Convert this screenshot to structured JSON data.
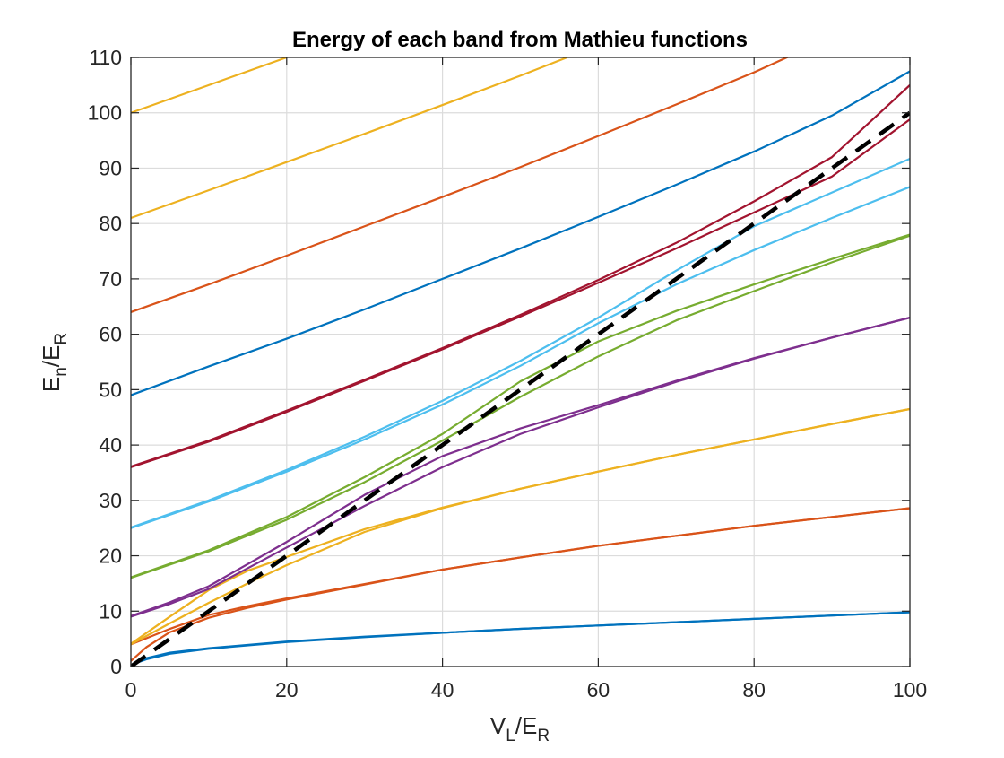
{
  "chart_data": {
    "type": "line",
    "title": "Energy of each band from Mathieu functions",
    "xlabel": {
      "main1": "V",
      "sub1": "L",
      "main2": "/E",
      "sub2": "R"
    },
    "ylabel": {
      "main1": "E",
      "sub1": "n",
      "main2": "/E",
      "sub2": "R"
    },
    "xlim": [
      0,
      100
    ],
    "ylim": [
      0,
      110
    ],
    "xticks": [
      0,
      20,
      40,
      60,
      80,
      100
    ],
    "yticks": [
      0,
      10,
      20,
      30,
      40,
      50,
      60,
      70,
      80,
      90,
      100,
      110
    ],
    "grid": true,
    "series": [
      {
        "color": "#0072BD",
        "x": [
          0,
          1,
          2,
          5,
          10,
          20,
          30,
          40,
          50,
          60,
          70,
          80,
          90,
          100
        ],
        "y": [
          0,
          0.95,
          1.5,
          2.5,
          3.3,
          4.5,
          5.4,
          6.1,
          6.8,
          7.4,
          8.0,
          8.6,
          9.2,
          9.8
        ]
      },
      {
        "color": "#0072BD",
        "x": [
          0,
          1,
          2,
          5,
          10,
          20,
          30,
          40,
          50,
          60,
          70,
          80,
          90,
          100
        ],
        "y": [
          0.1,
          0.8,
          1.3,
          2.3,
          3.2,
          4.4,
          5.3,
          6.1,
          6.8,
          7.4,
          8.0,
          8.6,
          9.2,
          9.8
        ]
      },
      {
        "color": "#D95319",
        "x": [
          0,
          2,
          5,
          10,
          15,
          20,
          30,
          40,
          50,
          60,
          70,
          80,
          90,
          100
        ],
        "y": [
          1.0,
          3.5,
          6.2,
          8.8,
          10.6,
          12.1,
          14.8,
          17.5,
          19.7,
          21.8,
          23.6,
          25.4,
          27.0,
          28.6
        ]
      },
      {
        "color": "#D95319",
        "x": [
          0,
          2,
          5,
          10,
          15,
          20,
          30,
          40,
          50,
          60,
          70,
          80,
          90,
          100
        ],
        "y": [
          4.0,
          5.1,
          6.8,
          9.3,
          10.9,
          12.3,
          14.9,
          17.5,
          19.7,
          21.8,
          23.6,
          25.4,
          27.0,
          28.6
        ]
      },
      {
        "color": "#EDB120",
        "x": [
          0,
          5,
          10,
          15,
          20,
          30,
          40,
          50,
          60,
          70,
          80,
          90,
          100
        ],
        "y": [
          4.0,
          7.8,
          11.5,
          15.0,
          18.3,
          24.3,
          28.6,
          32.1,
          35.2,
          38.2,
          41.0,
          43.8,
          46.5
        ]
      },
      {
        "color": "#EDB120",
        "x": [
          0,
          5,
          10,
          15,
          20,
          30,
          40,
          50,
          60,
          70,
          80,
          90,
          100
        ],
        "y": [
          4.1,
          9.0,
          13.8,
          17.3,
          19.8,
          24.8,
          28.7,
          32.1,
          35.2,
          38.2,
          41.0,
          43.8,
          46.5
        ]
      },
      {
        "color": "#7E2F8E",
        "x": [
          0,
          5,
          10,
          20,
          30,
          40,
          50,
          60,
          70,
          80,
          90,
          100
        ],
        "y": [
          9.0,
          11.3,
          14.0,
          21.5,
          29.0,
          36.0,
          42.0,
          46.8,
          51.4,
          55.6,
          59.4,
          63.0
        ]
      },
      {
        "color": "#7E2F8E",
        "x": [
          0,
          5,
          10,
          20,
          30,
          40,
          50,
          60,
          70,
          80,
          90,
          100
        ],
        "y": [
          9.1,
          11.6,
          14.5,
          22.5,
          31.0,
          38.0,
          43.0,
          47.2,
          51.6,
          55.7,
          59.4,
          63.0
        ]
      },
      {
        "color": "#77AC30",
        "x": [
          0,
          10,
          20,
          30,
          40,
          50,
          60,
          70,
          80,
          90,
          100
        ],
        "y": [
          16.0,
          20.8,
          26.5,
          33.3,
          40.8,
          48.7,
          56.0,
          62.5,
          67.8,
          73.0,
          77.8
        ]
      },
      {
        "color": "#77AC30",
        "x": [
          0,
          10,
          20,
          30,
          40,
          50,
          60,
          70,
          80,
          90,
          100
        ],
        "y": [
          16.1,
          21.0,
          27.0,
          34.2,
          42.0,
          51.5,
          58.7,
          64.2,
          69.0,
          73.6,
          78.0
        ]
      },
      {
        "color": "#4DBEEE",
        "x": [
          0,
          10,
          20,
          30,
          40,
          50,
          60,
          70,
          80,
          90,
          100
        ],
        "y": [
          25.0,
          29.8,
          35.2,
          41.0,
          47.3,
          54.3,
          62.0,
          69.0,
          75.2,
          81.0,
          86.6
        ]
      },
      {
        "color": "#4DBEEE",
        "x": [
          0,
          10,
          20,
          30,
          40,
          50,
          60,
          70,
          80,
          90,
          100
        ],
        "y": [
          25.1,
          30.0,
          35.5,
          41.5,
          48.0,
          55.2,
          63.0,
          71.5,
          79.5,
          85.6,
          91.7
        ]
      },
      {
        "color": "#A2142F",
        "x": [
          0,
          10,
          20,
          30,
          40,
          50,
          60,
          70,
          80,
          90,
          100
        ],
        "y": [
          36.0,
          40.6,
          46.0,
          51.6,
          57.3,
          63.2,
          69.3,
          75.5,
          82.0,
          88.5,
          98.8
        ]
      },
      {
        "color": "#A2142F",
        "x": [
          0,
          10,
          20,
          30,
          40,
          50,
          60,
          70,
          80,
          90,
          100
        ],
        "y": [
          36.1,
          40.8,
          46.2,
          51.8,
          57.5,
          63.5,
          69.8,
          76.5,
          84.0,
          92.0,
          105.0
        ]
      },
      {
        "color": "#0072BD",
        "x": [
          0,
          10,
          20,
          30,
          40,
          50,
          60,
          70,
          80,
          90,
          100
        ],
        "y": [
          49.0,
          54.2,
          59.2,
          64.5,
          70.0,
          75.5,
          81.2,
          87.0,
          93.0,
          99.5,
          107.5
        ]
      },
      {
        "color": "#D95319",
        "x": [
          0,
          10,
          20,
          30,
          40,
          50,
          60,
          70,
          80,
          85
        ],
        "y": [
          64.0,
          69.0,
          74.2,
          79.5,
          84.8,
          90.2,
          95.8,
          101.5,
          107.3,
          110.5
        ]
      },
      {
        "color": "#EDB120",
        "x": [
          0,
          10,
          20,
          30,
          40,
          50,
          56
        ],
        "y": [
          81.0,
          86.0,
          91.1,
          96.2,
          101.4,
          106.7,
          110.0
        ]
      },
      {
        "color": "#EDB120",
        "x": [
          0,
          10,
          20
        ],
        "y": [
          100.0,
          105.0,
          110.0
        ]
      },
      {
        "color": "#000000",
        "dashed": true,
        "x": [
          0,
          100
        ],
        "y": [
          0,
          100
        ]
      }
    ]
  }
}
